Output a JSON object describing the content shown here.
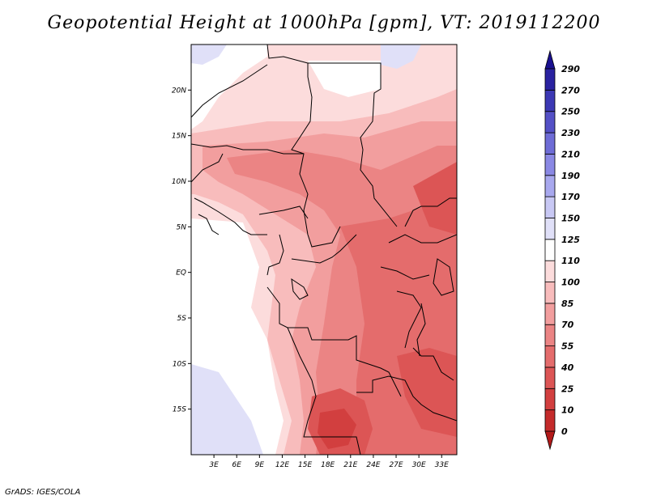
{
  "title": "Geopotential Height at 1000hPa [gpm], VT: 2019112200",
  "credit": "GrADS: IGES/COLA",
  "map": {
    "lat_labels": [
      "20N",
      "15N",
      "10N",
      "5N",
      "EQ",
      "5S",
      "10S",
      "15S"
    ],
    "lat_values": [
      20,
      15,
      10,
      5,
      0,
      -5,
      -10,
      -15
    ],
    "lon_labels": [
      "3E",
      "6E",
      "9E",
      "12E",
      "15E",
      "18E",
      "21E",
      "24E",
      "27E",
      "30E",
      "33E"
    ],
    "lon_values": [
      3,
      6,
      9,
      12,
      15,
      18,
      21,
      24,
      27,
      30,
      33
    ],
    "lon_range": [
      0,
      35
    ],
    "lat_range": [
      -20,
      25
    ]
  },
  "colorbar": {
    "labels": [
      "0",
      "10",
      "25",
      "40",
      "55",
      "70",
      "85",
      "100",
      "110",
      "125",
      "150",
      "170",
      "190",
      "210",
      "230",
      "250",
      "270",
      "290"
    ],
    "colors": [
      "#b31a1a",
      "#c42b2b",
      "#d23f3f",
      "#dc5555",
      "#e46c6c",
      "#eb8484",
      "#f29e9e",
      "#f8bcbc",
      "#fcdcdc",
      "#ffffff",
      "#e0e0f8",
      "#c8c8f4",
      "#a8a8ee",
      "#8a88e4",
      "#6e6cd6",
      "#5450c6",
      "#3c38b4",
      "#2a22a0",
      "#1a1090"
    ]
  }
}
